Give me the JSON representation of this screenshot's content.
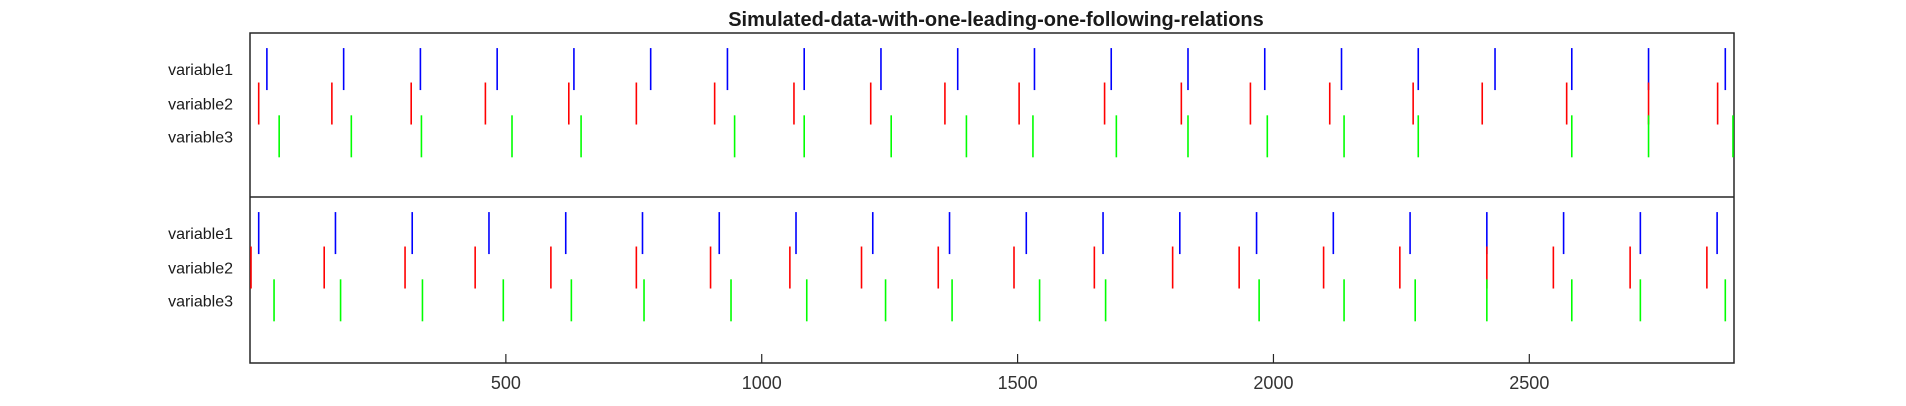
{
  "chart_data": {
    "type": "event-raster",
    "title": "Simulated-data-with-one-leading-one-following-relations",
    "xlim": [
      0,
      2900
    ],
    "xticks": [
      500,
      1000,
      1500,
      2000,
      2500
    ],
    "grid": false,
    "legend": "none",
    "panels": [
      {
        "series": [
          {
            "name": "variable1",
            "color": "#0000ff",
            "events": [
              33,
              183,
              333,
              483,
              633,
              783,
              933,
              1083,
              1233,
              1383,
              1533,
              1683,
              1833,
              1983,
              2133,
              2283,
              2433,
              2583,
              2733,
              2883
            ]
          },
          {
            "name": "variable2",
            "color": "#ff0000",
            "events": [
              17,
              160,
              315,
              460,
              623,
              755,
              908,
              1063,
              1213,
              1358,
              1503,
              1670,
              1820,
              1955,
              2110,
              2273,
              2408,
              2573,
              2733,
              2868
            ]
          },
          {
            "name": "variable3",
            "color": "#00ff00",
            "events": [
              57,
              198,
              335,
              512,
              647,
              947,
              1083,
              1253,
              1400,
              1530,
              1693,
              1833,
              1988,
              2138,
              2283,
              2583,
              2733,
              2898
            ]
          }
        ]
      },
      {
        "series": [
          {
            "name": "variable1",
            "color": "#0000ff",
            "events": [
              17,
              167,
              317,
              467,
              617,
              767,
              917,
              1067,
              1217,
              1367,
              1517,
              1667,
              1817,
              1967,
              2117,
              2267,
              2417,
              2567,
              2717,
              2867
            ]
          },
          {
            "name": "variable2",
            "color": "#ff0000",
            "events": [
              0,
              145,
              303,
              440,
              588,
              755,
              900,
              1055,
              1195,
              1345,
              1493,
              1650,
              1803,
              1933,
              2098,
              2247,
              2417,
              2547,
              2697,
              2847
            ]
          },
          {
            "name": "variable3",
            "color": "#00ff00",
            "events": [
              47,
              177,
              337,
              495,
              628,
              770,
              940,
              1088,
              1242,
              1372,
              1543,
              1672,
              1972,
              2138,
              2277,
              2417,
              2583,
              2717,
              2883
            ]
          }
        ]
      }
    ]
  }
}
